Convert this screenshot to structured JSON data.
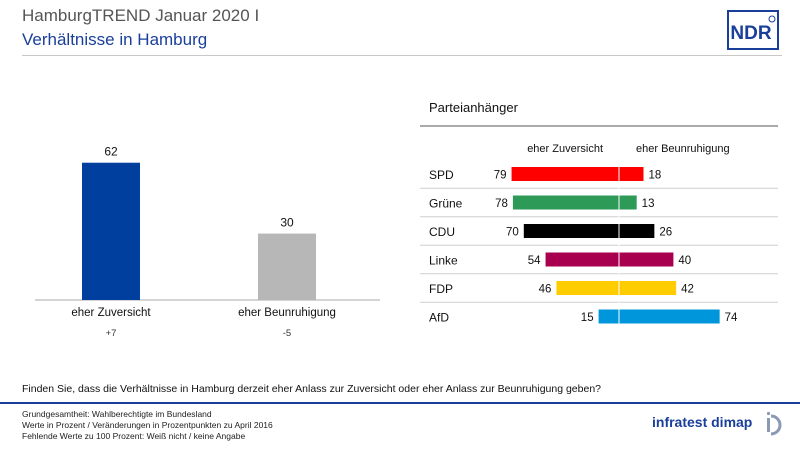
{
  "header": {
    "title": "HamburgTREND Januar 2020 I",
    "subtitle": "Verhältnisse in Hamburg",
    "logo_text": "NDR"
  },
  "question": "Finden Sie, dass die Verhältnisse in Hamburg derzeit eher Anlass zur Zuversicht oder eher Anlass zur Beunruhigung geben?",
  "footnotes": [
    "Grundgesamtheit: Wahlberechtigte im Bundesland",
    "Werte in Prozent / Veränderungen in Prozentpunkten zu April 2016",
    "Fehlende Werte zu 100 Prozent: Weiß nicht / keine Angabe"
  ],
  "institute_logo": "infratest dimap",
  "colors": {
    "title_blue": "#1a3f9a",
    "zuversicht": "#003f9e",
    "beunruhigung": "#b7b7b7"
  },
  "chart_data": [
    {
      "type": "bar",
      "categories": [
        "eher Zuversicht",
        "eher Beunruhigung"
      ],
      "values": [
        62,
        30
      ],
      "changes": [
        "+7",
        "-5"
      ],
      "colors": [
        "#003f9e",
        "#b7b7b7"
      ],
      "ylim": [
        0,
        70
      ]
    },
    {
      "type": "bar",
      "orientation": "diverging-horizontal",
      "title": "Parteianhänger",
      "left_label": "eher Zuversicht",
      "right_label": "eher Beunruhigung",
      "parties": [
        {
          "name": "SPD",
          "zuversicht": 79,
          "beunruhigung": 18,
          "color": "#ff0000"
        },
        {
          "name": "Grüne",
          "zuversicht": 78,
          "beunruhigung": 13,
          "color": "#2e9a57"
        },
        {
          "name": "CDU",
          "zuversicht": 70,
          "beunruhigung": 26,
          "color": "#000000"
        },
        {
          "name": "Linke",
          "zuversicht": 54,
          "beunruhigung": 40,
          "color": "#a8004f"
        },
        {
          "name": "FDP",
          "zuversicht": 46,
          "beunruhigung": 42,
          "color": "#ffcc00"
        },
        {
          "name": "AfD",
          "zuversicht": 15,
          "beunruhigung": 74,
          "color": "#0096dc"
        }
      ]
    }
  ]
}
